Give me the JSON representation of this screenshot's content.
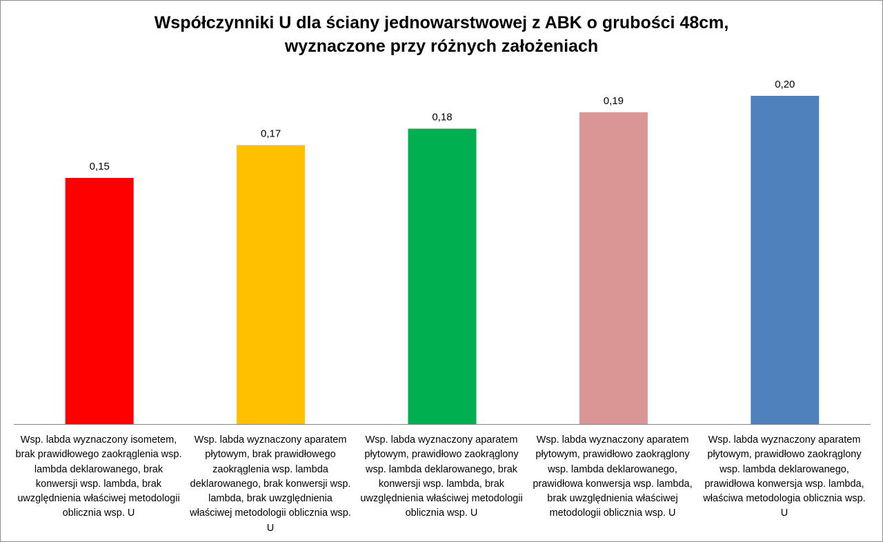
{
  "chart_data": {
    "type": "bar",
    "title_lines": [
      "Współczynniki U dla ściany jednowarstwowej z ABK o grubości 48cm,",
      "wyznaczone przy różnych założeniach"
    ],
    "categories": [
      "Wsp. labda wyznaczony isometem, brak prawidłowego zaokrąglenia wsp. lambda deklarowanego, brak konwersji wsp. lambda, brak uwzględnienia właściwej metodologii oblicznia wsp. U",
      "Wsp. labda wyznaczony aparatem płytowym, brak prawidłowego zaokrąglenia wsp. lambda deklarowanego, brak konwersji wsp. lambda, brak uwzględnienia właściwej metodologii oblicznia wsp. U",
      "Wsp. labda wyznaczony aparatem płytowym, prawidłowo zaokrąglony wsp. lambda deklarowanego, brak konwersji wsp. lambda, brak uwzględnienia właściwej metodologii oblicznia wsp. U",
      "Wsp. labda wyznaczony aparatem płytowym, prawidłowo zaokrąglony wsp. lambda deklarowanego, prawidłowa konwersja wsp. lambda, brak uwzględnienia właściwej metodologii oblicznia wsp. U",
      "Wsp. labda wyznaczony aparatem płytowym, prawidłowo zaokrąglony wsp. lambda deklarowanego, prawidłowa konwersja wsp. lambda, właściwa metodologia oblicznia wsp. U"
    ],
    "values": [
      0.15,
      0.17,
      0.18,
      0.19,
      0.2
    ],
    "value_labels": [
      "0,15",
      "0,17",
      "0,18",
      "0,19",
      "0,20"
    ],
    "colors": [
      "#ff0000",
      "#ffc000",
      "#00b050",
      "#da9694",
      "#4f81bd"
    ],
    "ylim": [
      0,
      0.2
    ],
    "grid": false,
    "legend": "none"
  }
}
